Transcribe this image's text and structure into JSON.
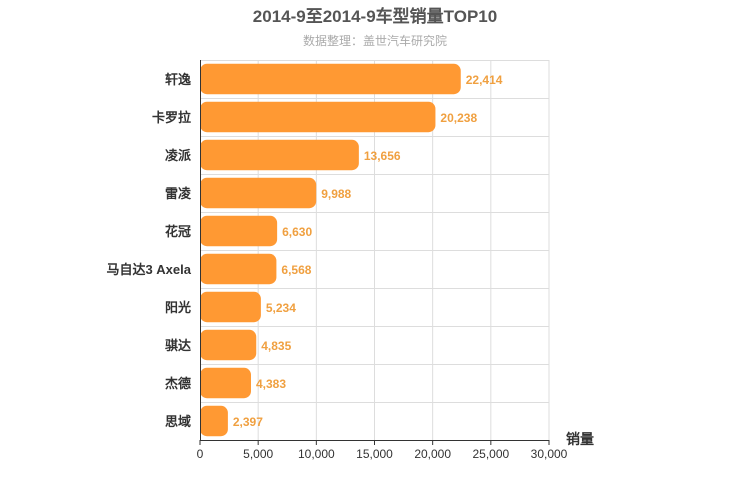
{
  "chart_data": {
    "type": "bar",
    "orientation": "horizontal",
    "title": "2014-9至2014-9车型销量TOP10",
    "subtitle": "数据整理：盖世汽车研究院",
    "xlabel": "销量",
    "ylabel": "",
    "xlim": [
      0,
      30000
    ],
    "x_ticks": [
      0,
      5000,
      10000,
      15000,
      20000,
      25000,
      30000
    ],
    "x_tick_labels": [
      "0",
      "5,000",
      "10,000",
      "15,000",
      "20,000",
      "25,000",
      "30,000"
    ],
    "categories": [
      "轩逸",
      "卡罗拉",
      "凌派",
      "雷凌",
      "花冠",
      "马自达3 Axela",
      "阳光",
      "骐达",
      "杰德",
      "思域"
    ],
    "values": [
      22414,
      20238,
      13656,
      9988,
      6630,
      6568,
      5234,
      4835,
      4383,
      2397
    ],
    "value_labels": [
      "22,414",
      "20,238",
      "13,656",
      "9,988",
      "6,630",
      "6,568",
      "5,234",
      "4,835",
      "4,383",
      "2,397"
    ],
    "grid": true,
    "legend": "none",
    "bar_color": "#ff9933",
    "label_color": "#f0a040"
  }
}
